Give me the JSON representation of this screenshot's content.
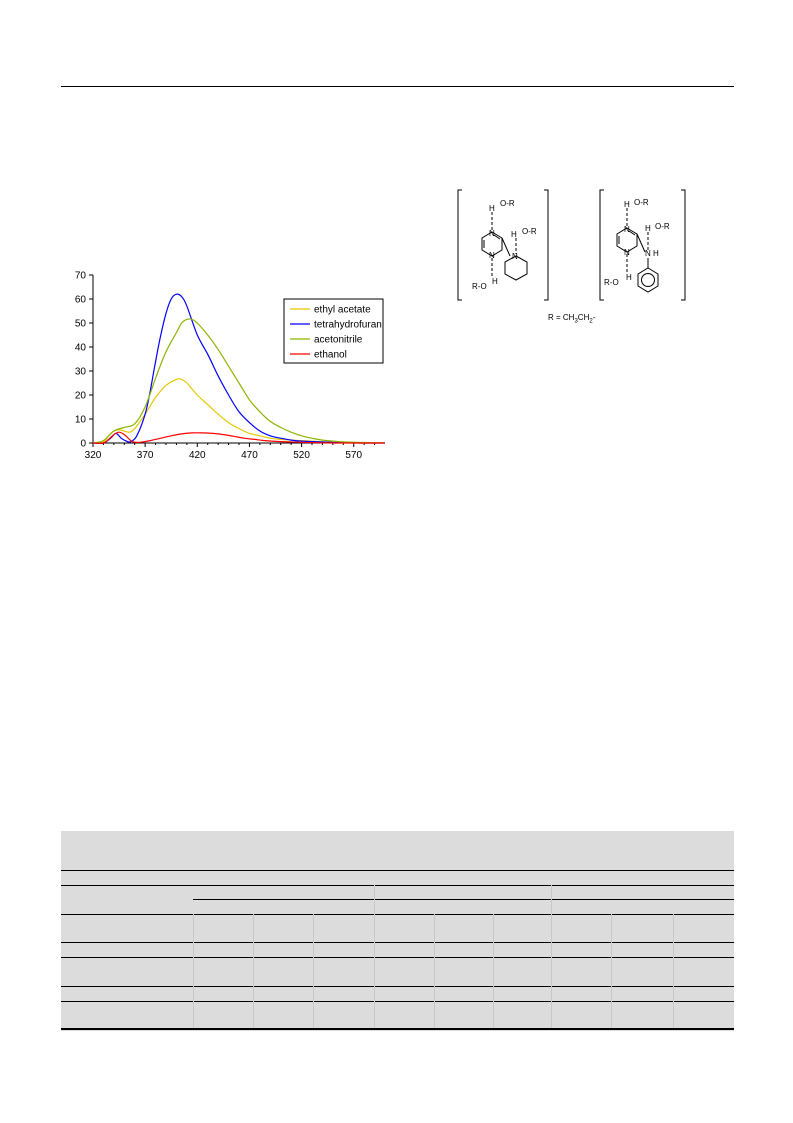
{
  "page": {
    "background": "#ffffff"
  },
  "chart_data": {
    "type": "line",
    "title": "",
    "xlabel": "",
    "ylabel": "",
    "xlim": [
      320,
      600
    ],
    "ylim": [
      0,
      70
    ],
    "xticks": [
      320,
      370,
      420,
      470,
      520,
      570
    ],
    "yticks": [
      0,
      10,
      20,
      30,
      40,
      50,
      60,
      70
    ],
    "grid": false,
    "legend_position": "top-right",
    "series": [
      {
        "name": "ethyl acetate",
        "color": "#e6c800",
        "points": [
          [
            320,
            0
          ],
          [
            330,
            0.5
          ],
          [
            335,
            3
          ],
          [
            340,
            5
          ],
          [
            345,
            5.5
          ],
          [
            350,
            5
          ],
          [
            355,
            4.5
          ],
          [
            360,
            6
          ],
          [
            370,
            12
          ],
          [
            380,
            19
          ],
          [
            390,
            24
          ],
          [
            400,
            26.5
          ],
          [
            405,
            26.5
          ],
          [
            410,
            25
          ],
          [
            420,
            20
          ],
          [
            430,
            16
          ],
          [
            440,
            12
          ],
          [
            450,
            8.5
          ],
          [
            460,
            6
          ],
          [
            470,
            4
          ],
          [
            480,
            3
          ],
          [
            490,
            2
          ],
          [
            500,
            1.5
          ],
          [
            520,
            1
          ],
          [
            540,
            0.5
          ],
          [
            560,
            0.2
          ],
          [
            580,
            0
          ],
          [
            600,
            0
          ]
        ]
      },
      {
        "name": "tetrahydrofuran",
        "color": "#0000ff",
        "points": [
          [
            320,
            0
          ],
          [
            330,
            0
          ],
          [
            337,
            2
          ],
          [
            342,
            4
          ],
          [
            347,
            2
          ],
          [
            352,
            0.8
          ],
          [
            356,
            0.5
          ],
          [
            362,
            3
          ],
          [
            370,
            12
          ],
          [
            375,
            22
          ],
          [
            380,
            34
          ],
          [
            385,
            45
          ],
          [
            390,
            54
          ],
          [
            395,
            60
          ],
          [
            400,
            62
          ],
          [
            405,
            61
          ],
          [
            410,
            57
          ],
          [
            420,
            45
          ],
          [
            430,
            37
          ],
          [
            440,
            28
          ],
          [
            450,
            20
          ],
          [
            460,
            13
          ],
          [
            470,
            8.5
          ],
          [
            480,
            5
          ],
          [
            490,
            3
          ],
          [
            500,
            2
          ],
          [
            510,
            1.2
          ],
          [
            520,
            0.8
          ],
          [
            540,
            0.4
          ],
          [
            560,
            0.1
          ],
          [
            580,
            0
          ],
          [
            600,
            0
          ]
        ]
      },
      {
        "name": "acetonitrile",
        "color": "#8cb400",
        "points": [
          [
            320,
            0
          ],
          [
            330,
            1
          ],
          [
            340,
            5
          ],
          [
            350,
            6.5
          ],
          [
            360,
            8
          ],
          [
            370,
            15
          ],
          [
            380,
            27
          ],
          [
            390,
            38
          ],
          [
            400,
            46
          ],
          [
            405,
            50
          ],
          [
            410,
            51.5
          ],
          [
            415,
            51.5
          ],
          [
            420,
            50
          ],
          [
            430,
            45
          ],
          [
            440,
            39
          ],
          [
            450,
            32
          ],
          [
            460,
            25
          ],
          [
            470,
            18
          ],
          [
            480,
            13
          ],
          [
            490,
            9
          ],
          [
            500,
            6.5
          ],
          [
            510,
            4.5
          ],
          [
            520,
            3
          ],
          [
            530,
            2
          ],
          [
            540,
            1.2
          ],
          [
            560,
            0.5
          ],
          [
            580,
            0.2
          ],
          [
            600,
            0
          ]
        ]
      },
      {
        "name": "ethanol",
        "color": "#ff0000",
        "points": [
          [
            320,
            0
          ],
          [
            330,
            0
          ],
          [
            335,
            1.5
          ],
          [
            340,
            3.5
          ],
          [
            345,
            4.5
          ],
          [
            350,
            3.5
          ],
          [
            355,
            1.5
          ],
          [
            358,
            0.5
          ],
          [
            365,
            0.3
          ],
          [
            375,
            1
          ],
          [
            385,
            2
          ],
          [
            395,
            3
          ],
          [
            405,
            3.8
          ],
          [
            415,
            4.2
          ],
          [
            425,
            4.2
          ],
          [
            435,
            4
          ],
          [
            445,
            3.5
          ],
          [
            455,
            2.8
          ],
          [
            465,
            2
          ],
          [
            475,
            1.5
          ],
          [
            485,
            1
          ],
          [
            500,
            0.6
          ],
          [
            520,
            0.3
          ],
          [
            540,
            0.1
          ],
          [
            560,
            0
          ],
          [
            600,
            0
          ]
        ]
      }
    ]
  },
  "structure": {
    "left_complex": {
      "labels": [
        "H",
        "O-R",
        "N",
        "N",
        "H",
        "O-R",
        "N",
        "H",
        "R-O"
      ]
    },
    "right_complex": {
      "labels": [
        "H",
        "O-R",
        "N",
        "H",
        "O-R",
        "N",
        "N",
        "H",
        "H",
        "R-O"
      ]
    },
    "caption": {
      "prefix": "R = CH",
      "sub1": "3",
      "mid": "CH",
      "sub2": "2",
      "suffix": "-"
    }
  },
  "table": {
    "background": "#dcdcdc"
  }
}
